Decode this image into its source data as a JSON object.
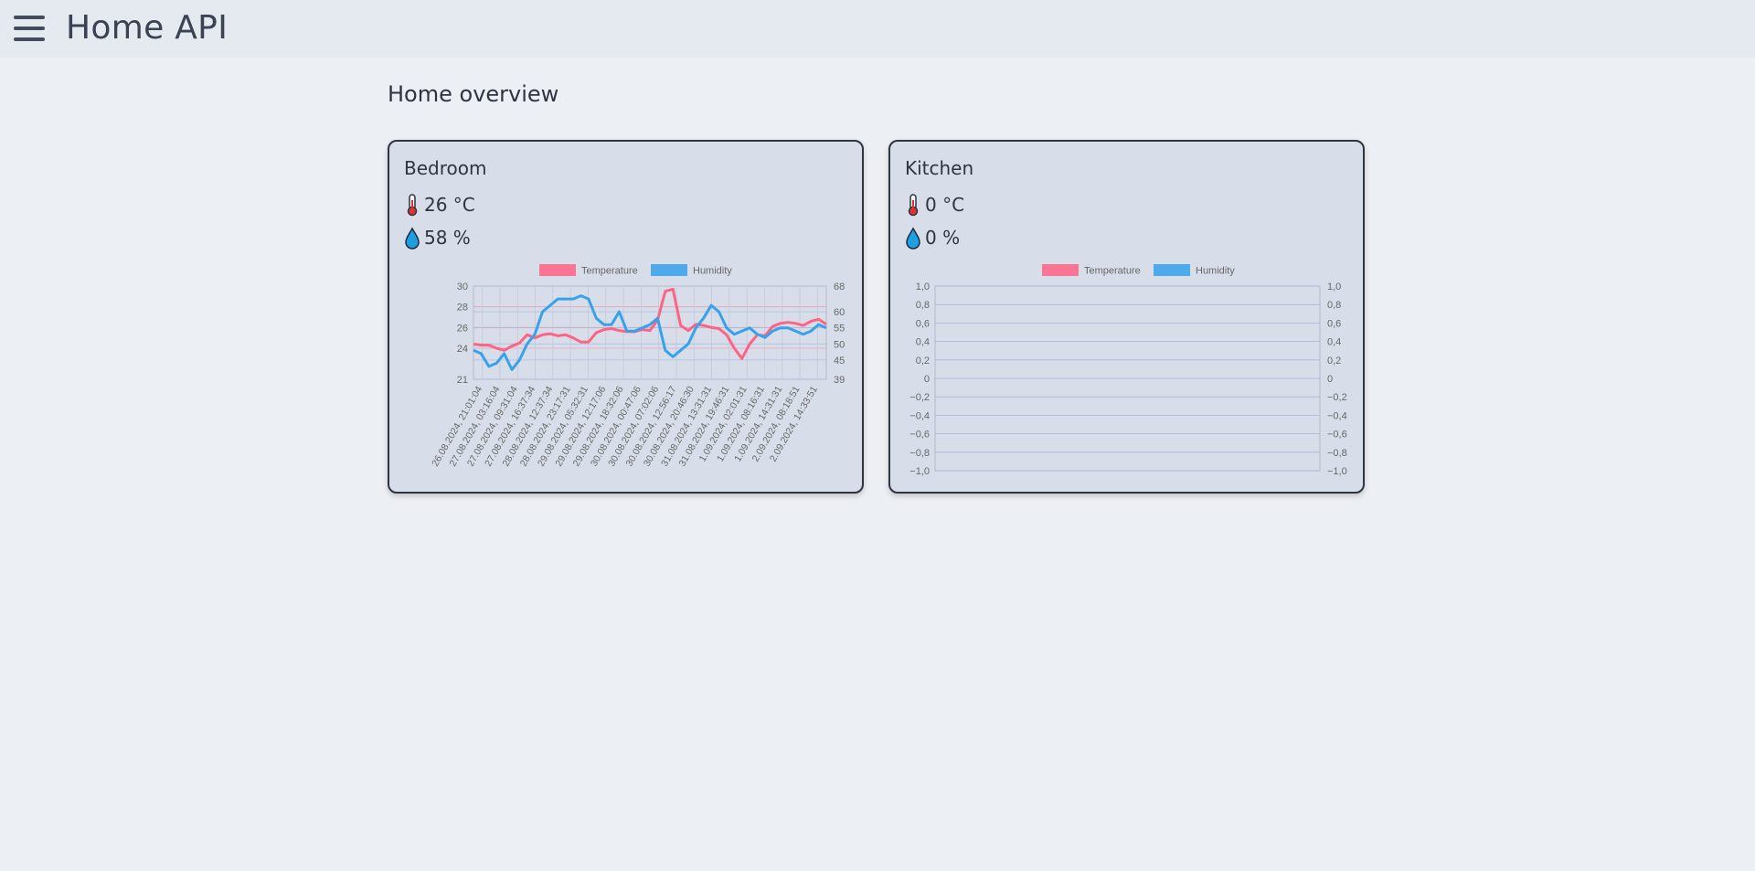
{
  "app": {
    "title": "Home API"
  },
  "page": {
    "title": "Home overview"
  },
  "colors": {
    "temperature": "#ff6384",
    "humidity": "#36a2eb"
  },
  "icons": {
    "menu": "hamburger-menu-icon",
    "temperature": "thermometer-icon",
    "humidity": "water-drop-icon"
  },
  "rooms": [
    {
      "name": "Bedroom",
      "temperature": "26 °C",
      "humidity": "58 %",
      "chart_data": {
        "type": "line",
        "title": "",
        "legend_position": "top",
        "series_names": [
          "Temperature",
          "Humidity"
        ],
        "x_tick_labels": [
          "26.08.2024, 21:01:04",
          "27.08.2024, 03:16:04",
          "27.08.2024, 09:31:04",
          "27.08.2024, 16:37:34",
          "28.08.2024, 12:37:34",
          "28.08.2024, 23:17:31",
          "29.08.2024, 05:32:31",
          "29.08.2024, 12:17:06",
          "29.08.2024, 18:32:06",
          "30.08.2024, 00:47:06",
          "30.08.2024, 07:02:06",
          "30.08.2024, 12:56:17",
          "30.08.2024, 20:46:30",
          "31.08.2024, 13:31:31",
          "31.08.2024, 19:46:31",
          "1.09.2024, 02:01:31",
          "1.09.2024, 08:16:31",
          "1.09.2024, 14:31:31",
          "2.09.2024, 08:18:51",
          "2.09.2024, 14:33:51"
        ],
        "y_left": {
          "series": "Temperature",
          "ticks": [
            "30",
            "28",
            "26",
            "24",
            "21"
          ],
          "min": 21,
          "max": 30
        },
        "y_right": {
          "series": "Humidity",
          "ticks": [
            "68",
            "60",
            "55",
            "50",
            "45",
            "39"
          ],
          "min": 39,
          "max": 68
        },
        "grid": true,
        "series": [
          {
            "name": "Temperature",
            "axis": "left",
            "values": [
              24.4,
              24.3,
              24.3,
              24.0,
              23.8,
              24.2,
              24.5,
              25.3,
              25.0,
              25.3,
              25.4,
              25.2,
              25.3,
              25.0,
              24.6,
              24.6,
              25.5,
              25.8,
              25.9,
              25.7,
              25.6,
              25.6,
              25.8,
              25.7,
              26.7,
              29.5,
              29.7,
              26.2,
              25.7,
              26.3,
              26.2,
              26.0,
              25.9,
              25.3,
              24.0,
              23.0,
              24.4,
              25.3,
              25.2,
              26.1,
              26.4,
              26.5,
              26.4,
              26.2,
              26.6,
              26.8,
              26.3
            ]
          },
          {
            "name": "Humidity",
            "axis": "right",
            "values": [
              48,
              47,
              43,
              44,
              47,
              42,
              45,
              50,
              53,
              60,
              62,
              64,
              64,
              64,
              65,
              64,
              58,
              56,
              56,
              60,
              54,
              54,
              55,
              56,
              58,
              48,
              46,
              48,
              50,
              55,
              58,
              62,
              60,
              55,
              53,
              54,
              55,
              53,
              52,
              54,
              55,
              55,
              54,
              53,
              54,
              56,
              55
            ]
          }
        ]
      }
    },
    {
      "name": "Kitchen",
      "temperature": "0 °C",
      "humidity": "0 %",
      "chart_data": {
        "type": "line",
        "title": "",
        "legend_position": "top",
        "series_names": [
          "Temperature",
          "Humidity"
        ],
        "x_tick_labels": [],
        "y_left": {
          "series": "Temperature",
          "ticks": [
            "1,0",
            "0,8",
            "0,6",
            "0,4",
            "0,2",
            "0",
            "−0,2",
            "−0,4",
            "−0,6",
            "−0,8",
            "−1,0"
          ],
          "min": -1,
          "max": 1
        },
        "y_right": {
          "series": "Humidity",
          "ticks": [
            "1,0",
            "0,8",
            "0,6",
            "0,4",
            "0,2",
            "0",
            "−0,2",
            "−0,4",
            "−0,6",
            "−0,8",
            "−1,0"
          ],
          "min": -1,
          "max": 1
        },
        "grid": true,
        "series": [
          {
            "name": "Temperature",
            "axis": "left",
            "values": []
          },
          {
            "name": "Humidity",
            "axis": "right",
            "values": []
          }
        ]
      }
    }
  ]
}
